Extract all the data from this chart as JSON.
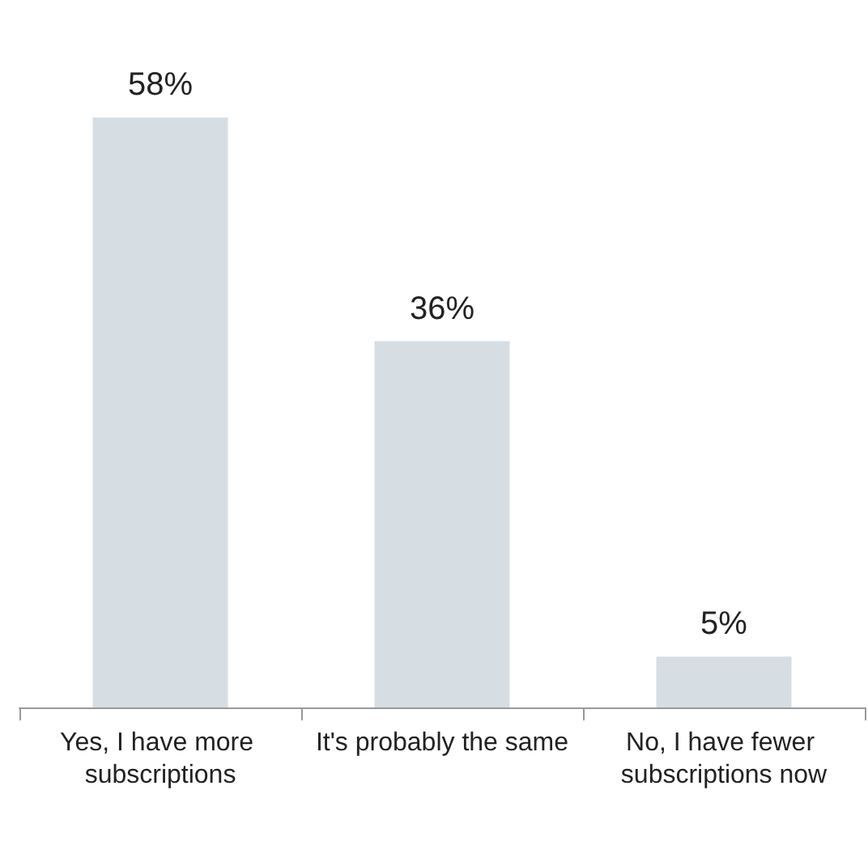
{
  "chart_data": {
    "type": "bar",
    "categories": [
      "Yes, I have more subscriptions",
      "It's probably the same",
      "No, I have fewer subscriptions now"
    ],
    "values": [
      58,
      36,
      5
    ],
    "value_labels": [
      "58%",
      "36%",
      "5%"
    ],
    "color": "#d6dee4"
  }
}
